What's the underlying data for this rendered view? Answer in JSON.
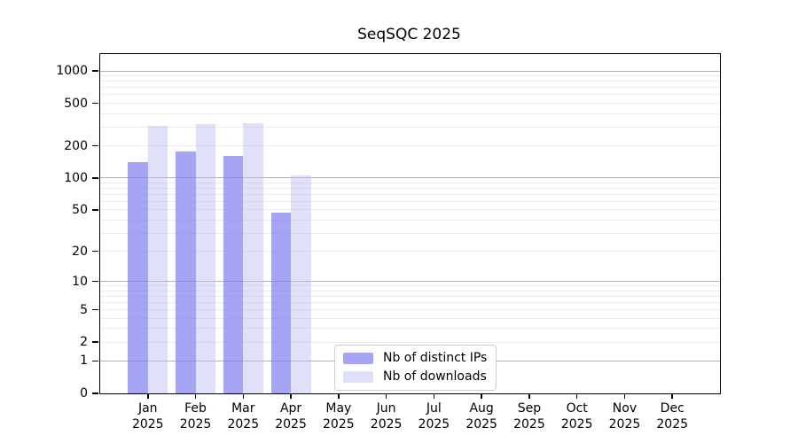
{
  "chart_data": {
    "type": "bar",
    "title": "SeqSQC 2025",
    "categories": [
      "Jan",
      "Feb",
      "Mar",
      "Apr",
      "May",
      "Jun",
      "Jul",
      "Aug",
      "Sep",
      "Oct",
      "Nov",
      "Dec"
    ],
    "category_year": "2025",
    "series": [
      {
        "name": "Nb of distinct IPs",
        "color": "#a8a8f5",
        "fill": "rgba(127,127,240,0.7)",
        "values": [
          142,
          178,
          160,
          47,
          0,
          0,
          0,
          0,
          0,
          0,
          0,
          0
        ]
      },
      {
        "name": "Nb of downloads",
        "color": "#d8d8f8",
        "fill": "rgba(187,187,242,0.45)",
        "values": [
          308,
          318,
          328,
          105,
          0,
          0,
          0,
          0,
          0,
          0,
          0,
          0
        ]
      }
    ],
    "yscale": "log10(1+x)",
    "ylim": [
      0,
      1435
    ],
    "y_tick_labels": [
      "0",
      "1",
      "2",
      "5",
      "10",
      "20",
      "50",
      "100",
      "200",
      "500",
      "1000"
    ],
    "grid": "horizontal",
    "grid_major_color": "#b2b2b2",
    "grid_minor_color": "#ebebeb",
    "legend_position": "lower center inside"
  }
}
